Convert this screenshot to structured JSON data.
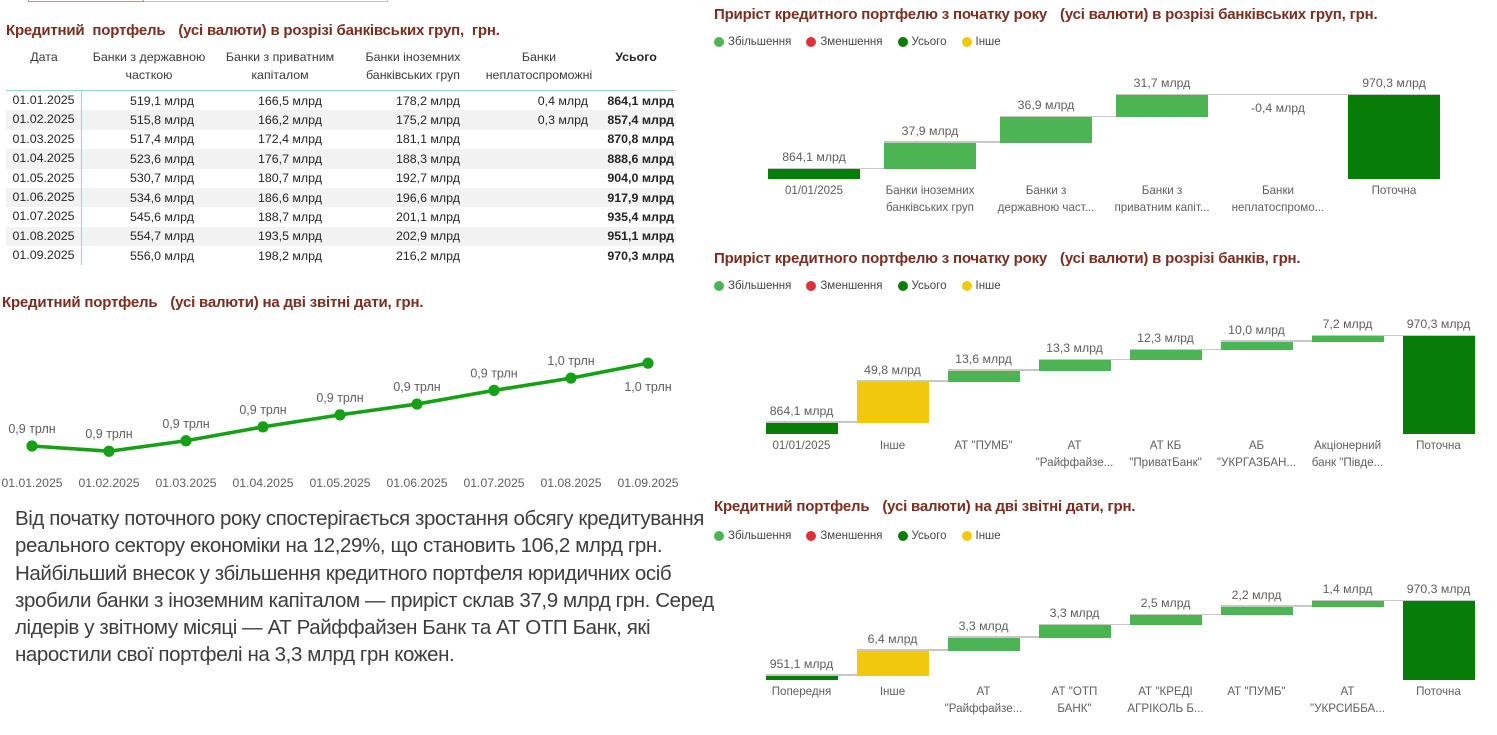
{
  "colors": {
    "title": "#7A2E1F",
    "increase": "#4CB452",
    "decrease": "#E0303C",
    "total": "#077D07",
    "other": "#F2C80F",
    "line": "#16A016",
    "label": "#605E5C",
    "connector": "#C9C7C5",
    "table_accent": "#9FD4CE",
    "row_band": "#F2F2F2"
  },
  "cards": {
    "table": {
      "title_main": "Кредитний  портфель",
      "title_sub": "(усі валюти) в розрізі банківських груп,  грн."
    },
    "line": {
      "title_main": "Кредитний портфель",
      "title_sub": "(усі валюти) на дві звітні дати, грн."
    },
    "wf_groups": {
      "title_main": "Приріст кредитного портфелю з початку року",
      "title_sub": "(усі валюти) в розрізі банківських груп, грн."
    },
    "wf_banks": {
      "title_main": "Приріст кредитного портфелю з початку року",
      "title_sub": "(усі валюти) в розрізі банків, грн."
    },
    "wf_month": {
      "title_main": "Кредитний портфель",
      "title_sub": "(усі валюти) на дві звітні дати, грн."
    }
  },
  "legend": {
    "items": [
      {
        "label": "Збільшення",
        "color": "#4CB452"
      },
      {
        "label": "Зменшення",
        "color": "#E0303C"
      },
      {
        "label": "Усього",
        "color": "#077D06"
      },
      {
        "label": "Інше",
        "color": "#F2C80F"
      }
    ]
  },
  "narrative": {
    "text": "Від початку поточного року спостерігається зростання обсягу кредитування реального сектору економіки на 12,29%, що становить 106,2 млрд грн. Найбільший внесок у збільшення кредитного портфеля юридичних осіб зробили банки з іноземним капіталом — приріст склав 37,9 млрд грн. Серед лідерів у звітному місяці — АТ Райффайзен Банк та АТ ОТП Банк, які наростили свої портфелі на 3,3 млрд грн кожен."
  },
  "table_card": {
    "columns": [
      "Дата",
      "Банки з державною часткою",
      "Банки з приватним капіталом",
      "Банки іноземних банківських груп",
      "Банки неплатоспроможні",
      "Усього"
    ],
    "rows": [
      [
        "01.01.2025",
        "519,1 млрд",
        "166,5 млрд",
        "178,2 млрд",
        "0,4 млрд",
        "864,1 млрд"
      ],
      [
        "01.02.2025",
        "515,8 млрд",
        "166,2 млрд",
        "175,2 млрд",
        "0,3 млрд",
        "857,4 млрд"
      ],
      [
        "01.03.2025",
        "517,4 млрд",
        "172,4 млрд",
        "181,1 млрд",
        "",
        "870,8 млрд"
      ],
      [
        "01.04.2025",
        "523,6 млрд",
        "176,7 млрд",
        "188,3 млрд",
        "",
        "888,6 млрд"
      ],
      [
        "01.05.2025",
        "530,7 млрд",
        "180,7 млрд",
        "192,7 млрд",
        "",
        "904,0 млрд"
      ],
      [
        "01.06.2025",
        "534,6 млрд",
        "186,6 млрд",
        "196,6 млрд",
        "",
        "917,9 млрд"
      ],
      [
        "01.07.2025",
        "545,6 млрд",
        "188,7 млрд",
        "201,1 млрд",
        "",
        "935,4 млрд"
      ],
      [
        "01.08.2025",
        "554,7 млрд",
        "193,5 млрд",
        "202,9 млрд",
        "",
        "951,1 млрд"
      ],
      [
        "01.09.2025",
        "556,0 млрд",
        "198,2 млрд",
        "216,2 млрд",
        "",
        "970,3 млрд"
      ]
    ]
  },
  "chart_data": [
    {
      "type": "table",
      "title": "Кредитний портфель (усі валюти) в розрізі банківських груп, грн.",
      "columns": [
        "Дата",
        "Банки з державною часткою",
        "Банки з приватним капіталом",
        "Банки іноземних банківських груп",
        "Банки неплатоспроможні",
        "Усього"
      ],
      "rows_numeric_mlrd": [
        [
          "01.01.2025",
          519.1,
          166.5,
          178.2,
          0.4,
          864.1
        ],
        [
          "01.02.2025",
          515.8,
          166.2,
          175.2,
          0.3,
          857.4
        ],
        [
          "01.03.2025",
          517.4,
          172.4,
          181.1,
          null,
          870.8
        ],
        [
          "01.04.2025",
          523.6,
          176.7,
          188.3,
          null,
          888.6
        ],
        [
          "01.05.2025",
          530.7,
          180.7,
          192.7,
          null,
          904.0
        ],
        [
          "01.06.2025",
          534.6,
          186.6,
          196.6,
          null,
          917.9
        ],
        [
          "01.07.2025",
          545.6,
          188.7,
          201.1,
          null,
          935.4
        ],
        [
          "01.08.2025",
          554.7,
          193.5,
          202.9,
          null,
          951.1
        ],
        [
          "01.09.2025",
          556.0,
          198.2,
          216.2,
          null,
          970.3
        ]
      ]
    },
    {
      "type": "line",
      "title": "Кредитний портфель (усі валюти) на дві звітні дати, грн.",
      "x": [
        "01.01.2025",
        "01.02.2025",
        "01.03.2025",
        "01.04.2025",
        "01.05.2025",
        "01.06.2025",
        "01.07.2025",
        "01.08.2025",
        "01.09.2025"
      ],
      "values": [
        864.1,
        857.4,
        870.8,
        888.6,
        904.0,
        917.9,
        935.4,
        951.1,
        970.3
      ],
      "point_labels": [
        "0,9 трлн",
        "0,9 трлн",
        "0,9 трлн",
        "0,9 трлн",
        "0,9 трлн",
        "0,9 трлн",
        "0,9 трлн",
        "1,0 трлн",
        "1,0 трлн"
      ],
      "unit": "млрд грн",
      "ylim": [
        850,
        985
      ],
      "grid": false,
      "legend": "none"
    },
    {
      "type": "bar",
      "subtype": "waterfall",
      "title": "Приріст кредитного портфелю з початку року (усі валюти) в розрізі банківських груп, грн.",
      "categories": [
        "01/01/2025",
        "Банки іноземних\nбанківських груп",
        "Банки з\nдержавною част...",
        "Банки з\nприватним капіт...",
        "Банки\nнеплатоспромо...",
        "Поточна"
      ],
      "values": [
        864.1,
        37.9,
        36.9,
        31.7,
        -0.4,
        970.3
      ],
      "kinds": [
        "total",
        "increase",
        "increase",
        "increase",
        "decrease",
        "total"
      ],
      "labels": [
        "864,1 млрд",
        "37,9 млрд",
        "36,9 млрд",
        "31,7 млрд",
        "-0,4 млрд",
        "970,3 млрд"
      ],
      "unit": "млрд грн",
      "ymin": 850,
      "legend_position": "top"
    },
    {
      "type": "bar",
      "subtype": "waterfall",
      "title": "Приріст кредитного портфелю з початку року (усі валюти) в розрізі банків, грн.",
      "categories": [
        "01/01/2025",
        "Інше",
        "АТ \"ПУМБ\"",
        "АТ\n\"Райффайзе...",
        "АТ КБ\n\"ПриватБанк\"",
        "АБ\n\"УКРГАЗБАН...",
        "Акціонерний\nбанк \"Півде...",
        "Поточна"
      ],
      "values": [
        864.1,
        49.8,
        13.6,
        13.3,
        12.3,
        10.0,
        7.2,
        970.3
      ],
      "kinds": [
        "total",
        "other",
        "increase",
        "increase",
        "increase",
        "increase",
        "increase",
        "total"
      ],
      "labels": [
        "864,1 млрд",
        "49,8 млрд",
        "13,6 млрд",
        "13,3 млрд",
        "12,3 млрд",
        "10,0 млрд",
        "7,2 млрд",
        "970,3 млрд"
      ],
      "unit": "млрд грн",
      "ymin": 850,
      "legend_position": "top"
    },
    {
      "type": "bar",
      "subtype": "waterfall",
      "title": "Кредитний портфель (усі валюти) на дві звітні дати, грн.",
      "categories": [
        "Попередня",
        "Інше",
        "АТ\n\"Райффайзе...",
        "АТ \"ОТП\nБАНК\"",
        "АТ \"КРЕДІ\nАГРІКОЛЬ Б...",
        "АТ \"ПУМБ\"",
        "АТ\n\"УКРСИББА...",
        "Поточна"
      ],
      "values": [
        951.1,
        6.4,
        3.3,
        3.3,
        2.5,
        2.2,
        1.4,
        970.3
      ],
      "kinds": [
        "total",
        "other",
        "increase",
        "increase",
        "increase",
        "increase",
        "increase",
        "total"
      ],
      "labels": [
        "951,1 млрд",
        "6,4 млрд",
        "3,3 млрд",
        "3,3 млрд",
        "2,5 млрд",
        "2,2 млрд",
        "1,4 млрд",
        "970,3 млрд"
      ],
      "unit": "млрд грн",
      "ymin": 950,
      "legend_position": "top"
    }
  ]
}
